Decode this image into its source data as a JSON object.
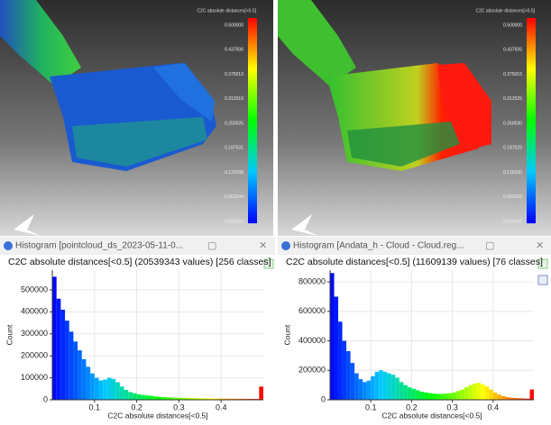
{
  "viewers": [
    {
      "scale_title": "C2C absolute distances[<0.5]",
      "scale_labels": [
        "0.500000",
        "0.437506",
        "0.375013",
        "0.312519",
        "0.250025",
        "0.187531",
        "0.125038",
        "0.062544",
        "0.000050"
      ]
    },
    {
      "scale_title": "C2C absolute distances[<0.5]",
      "scale_labels": [
        "0.500000",
        "0.437505",
        "0.375015",
        "0.312525",
        "0.250030",
        "0.187525",
        "0.125030",
        "0.062536",
        "0.000041"
      ]
    }
  ],
  "windows": [
    {
      "title": "Histogram [pointcloud_ds_2023-05-11-0..."
    },
    {
      "title": "Histogram [Andata_h - Cloud - Cloud.reg..."
    }
  ],
  "chart_data": [
    {
      "type": "histogram",
      "title": "C2C absolute distances[<0.5] (20539343 values)  [256 classes]",
      "x_label": "C2C absolute distances[<0.5]",
      "y_label": "Count",
      "colormap": [
        "#0000ff",
        "#00c8ff",
        "#00ff00",
        "#ffff00",
        "#ff0000"
      ],
      "bins": [
        0,
        0.01,
        0.02,
        0.03,
        0.04,
        0.05,
        0.06,
        0.07,
        0.08,
        0.09,
        0.1,
        0.11,
        0.12,
        0.13,
        0.14,
        0.15,
        0.16,
        0.17,
        0.18,
        0.19,
        0.2,
        0.21,
        0.22,
        0.23,
        0.24,
        0.25,
        0.26,
        0.27,
        0.28,
        0.29,
        0.3,
        0.31,
        0.32,
        0.33,
        0.34,
        0.35,
        0.36,
        0.37,
        0.38,
        0.39,
        0.4,
        0.41,
        0.42,
        0.43,
        0.44,
        0.45,
        0.46,
        0.47,
        0.48,
        0.49,
        0.5
      ],
      "values": [
        560000,
        460000,
        410000,
        360000,
        310000,
        265000,
        225000,
        185000,
        150000,
        120000,
        100000,
        88000,
        92000,
        100000,
        95000,
        80000,
        60000,
        45000,
        35000,
        30000,
        25000,
        22000,
        20000,
        18000,
        15000,
        13000,
        12000,
        11000,
        10000,
        9500,
        9000,
        8500,
        8000,
        7500,
        7000,
        6800,
        6500,
        6200,
        6000,
        5800,
        5500,
        5300,
        5000,
        4800,
        4600,
        4400,
        4200,
        4000,
        3900,
        60000
      ],
      "xlim": [
        0,
        0.5
      ],
      "xticks": [
        0.1,
        0.2,
        0.3,
        0.4
      ],
      "ylim": [
        0,
        590000
      ],
      "yticks": [
        0,
        100000,
        200000,
        300000,
        400000,
        500000
      ],
      "grid": true
    },
    {
      "type": "histogram",
      "title": "C2C absolute distances[<0.5] (11609139 values)  [76 classes]",
      "x_label": "C2C absolute distances[<0.5]",
      "y_label": "Count",
      "colormap": [
        "#0000ff",
        "#00c8ff",
        "#00ff00",
        "#ffff00",
        "#ff0000"
      ],
      "bins": [
        0,
        0.01,
        0.02,
        0.03,
        0.04,
        0.05,
        0.06,
        0.07,
        0.08,
        0.09,
        0.1,
        0.11,
        0.12,
        0.13,
        0.14,
        0.15,
        0.16,
        0.17,
        0.18,
        0.19,
        0.2,
        0.21,
        0.22,
        0.23,
        0.24,
        0.25,
        0.26,
        0.27,
        0.28,
        0.29,
        0.3,
        0.31,
        0.32,
        0.33,
        0.34,
        0.35,
        0.36,
        0.37,
        0.38,
        0.39,
        0.4,
        0.41,
        0.42,
        0.43,
        0.44,
        0.45,
        0.46,
        0.47,
        0.48,
        0.49,
        0.5
      ],
      "values": [
        860000,
        700000,
        530000,
        400000,
        330000,
        250000,
        180000,
        140000,
        120000,
        130000,
        160000,
        190000,
        200000,
        190000,
        180000,
        170000,
        150000,
        120000,
        100000,
        85000,
        75000,
        65000,
        55000,
        50000,
        45000,
        42000,
        40000,
        40000,
        42000,
        45000,
        50000,
        60000,
        70000,
        85000,
        100000,
        110000,
        115000,
        105000,
        90000,
        70000,
        50000,
        35000,
        25000,
        18000,
        14000,
        12000,
        10000,
        9000,
        8000,
        70000
      ],
      "xlim": [
        0,
        0.5
      ],
      "xticks": [
        0.1,
        0.2,
        0.3,
        0.4
      ],
      "ylim": [
        0,
        880000
      ],
      "yticks": [
        0,
        200000,
        400000,
        600000,
        800000
      ],
      "grid": true
    }
  ]
}
